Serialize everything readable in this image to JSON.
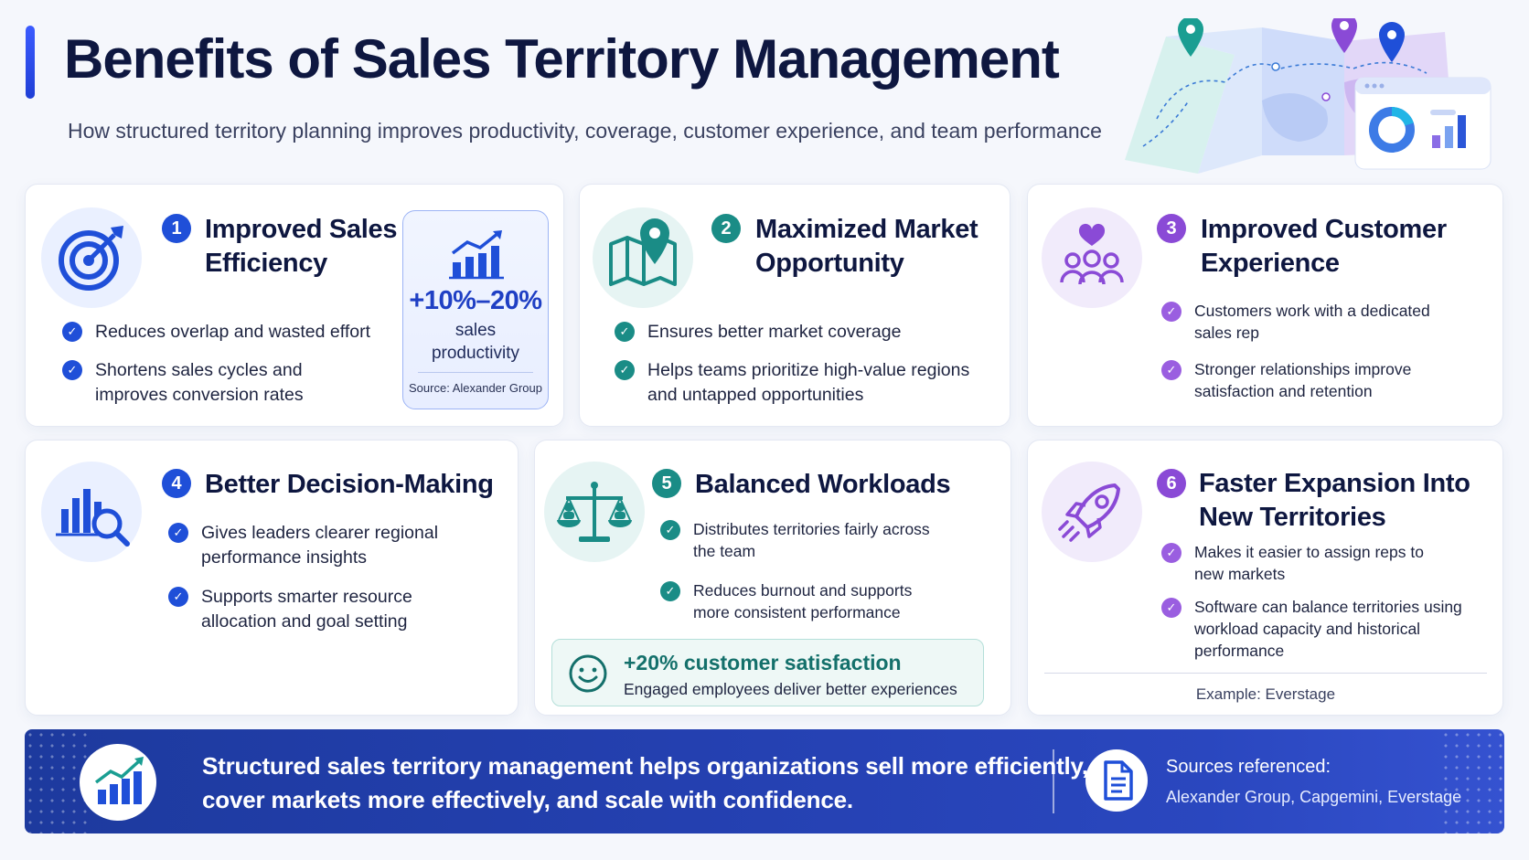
{
  "header": {
    "title": "Benefits of Sales Territory Management",
    "subtitle": "How structured territory planning improves productivity, coverage, customer experience, and team performance"
  },
  "colors": {
    "blue": "#1f4fd8",
    "teal": "#1a8c86",
    "purple": "#8a4ad6",
    "footer": "#2440b0"
  },
  "cards": [
    {
      "number": "1",
      "title_line1": "Improved Sales",
      "title_line2": "Efficiency",
      "icon": "target-icon",
      "bullets": [
        "Reduces overlap and wasted effort",
        "Shortens sales cycles and improves conversion rates"
      ],
      "stat": {
        "value": "+10%–20%",
        "label_line1": "sales",
        "label_line2": "productivity",
        "source": "Source: Alexander Group",
        "icon": "bar-chart-icon"
      }
    },
    {
      "number": "2",
      "title_line1": "Maximized Market",
      "title_line2": "Opportunity",
      "icon": "map-pin-icon",
      "bullets": [
        "Ensures better market coverage",
        "Helps teams prioritize high-value regions and untapped opportunities"
      ]
    },
    {
      "number": "3",
      "title_line1": "Improved Customer",
      "title_line2": "Experience",
      "icon": "customers-heart-icon",
      "bullets": [
        "Customers work with a dedicated sales rep",
        "Stronger relationships improve satisfaction and retention"
      ]
    },
    {
      "number": "4",
      "title_line1": "Better Decision-Making",
      "icon": "chart-magnifier-icon",
      "bullets": [
        "Gives leaders clearer regional performance insights",
        "Supports smarter resource allocation and goal setting"
      ]
    },
    {
      "number": "5",
      "title_line1": "Balanced Workloads",
      "icon": "balance-scale-icon",
      "bullets": [
        "Distributes territories fairly across the team",
        "Reduces burnout and supports more consistent performance"
      ],
      "highlight": {
        "value": "+20% customer satisfaction",
        "text": "Engaged employees deliver better experiences",
        "icon": "smiley-icon"
      }
    },
    {
      "number": "6",
      "title_line1": "Faster Expansion Into",
      "title_line2": "New Territories",
      "icon": "rocket-icon",
      "bullets": [
        "Makes it easier to assign reps to new markets",
        "Software can balance territories using workload capacity and historical performance"
      ],
      "example": "Example: Everstage"
    }
  ],
  "footer": {
    "line1": "Structured sales territory management helps organizations sell more efficiently,",
    "line2": "cover markets more effectively, and scale with confidence.",
    "sources_title": "Sources referenced:",
    "sources": "Alexander Group, Capgemini, Everstage"
  }
}
